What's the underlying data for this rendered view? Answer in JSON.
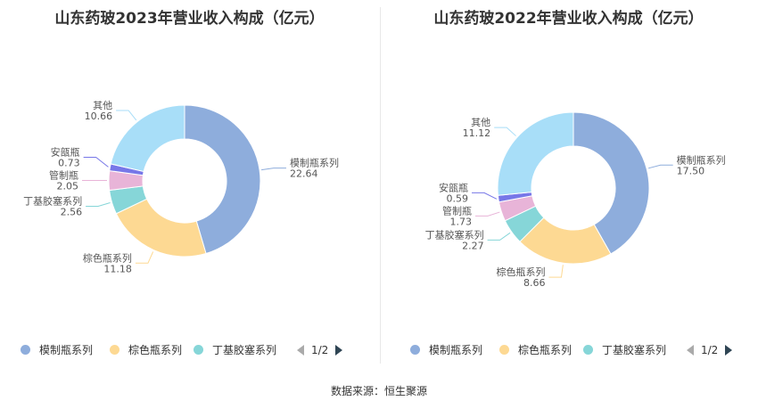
{
  "colors": {
    "模制瓶系列": "#8eaddc",
    "棕色瓶系列": "#fdd993",
    "丁基胶塞系列": "#86d6d8",
    "管制瓶": "#e8b4d8",
    "安瓿瓶": "#7777e8",
    "其他": "#a8def8"
  },
  "chart_data": [
    {
      "type": "pie",
      "title": "山东药玻2023年营业收入构成（亿元）",
      "slices": [
        {
          "name": "模制瓶系列",
          "value": 22.64,
          "value_label": "22.64"
        },
        {
          "name": "棕色瓶系列",
          "value": 11.18,
          "value_label": "11.18"
        },
        {
          "name": "丁基胶塞系列",
          "value": 2.56,
          "value_label": "2.56"
        },
        {
          "name": "管制瓶",
          "value": 2.05,
          "value_label": "2.05"
        },
        {
          "name": "安瓿瓶",
          "value": 0.73,
          "value_label": "0.73"
        },
        {
          "name": "其他",
          "value": 10.66,
          "value_label": "10.66"
        }
      ],
      "legend": {
        "items": [
          "模制瓶系列",
          "棕色瓶系列",
          "丁基胶塞系列"
        ],
        "page": "1/2",
        "position": "bottom"
      }
    },
    {
      "type": "pie",
      "title": "山东药玻2022年营业收入构成（亿元）",
      "slices": [
        {
          "name": "模制瓶系列",
          "value": 17.5,
          "value_label": "17.50"
        },
        {
          "name": "棕色瓶系列",
          "value": 8.66,
          "value_label": "8.66"
        },
        {
          "name": "丁基胶塞系列",
          "value": 2.27,
          "value_label": "2.27"
        },
        {
          "name": "管制瓶",
          "value": 1.73,
          "value_label": "1.73"
        },
        {
          "name": "安瓿瓶",
          "value": 0.59,
          "value_label": "0.59"
        },
        {
          "name": "其他",
          "value": 11.12,
          "value_label": "11.12"
        }
      ],
      "legend": {
        "items": [
          "模制瓶系列",
          "棕色瓶系列",
          "丁基胶塞系列"
        ],
        "page": "1/2",
        "position": "bottom"
      }
    }
  ],
  "source": "数据来源：恒生聚源"
}
